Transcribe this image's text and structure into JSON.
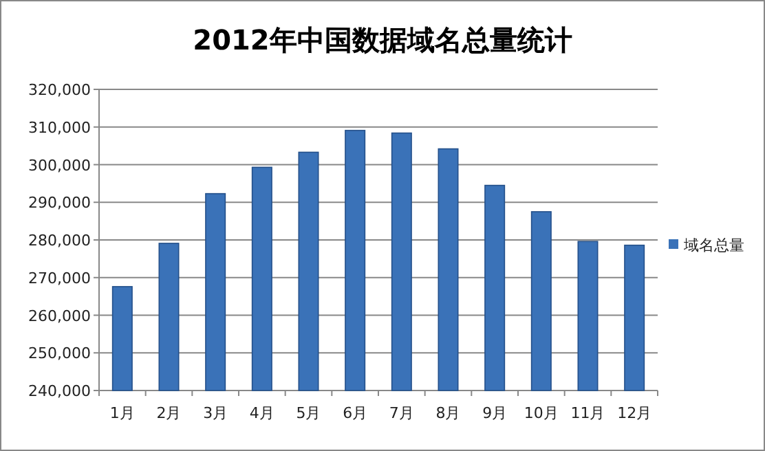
{
  "chart_data": {
    "type": "bar",
    "title": "2012年中国数据域名总量统计",
    "categories": [
      "1月",
      "2月",
      "3月",
      "4月",
      "5月",
      "6月",
      "7月",
      "8月",
      "9月",
      "10月",
      "11月",
      "12月"
    ],
    "series": [
      {
        "name": "域名总量",
        "color": "#3a72b8",
        "values": [
          267600,
          279100,
          292300,
          299300,
          303300,
          309100,
          308400,
          304200,
          294500,
          287500,
          279600,
          278600
        ]
      }
    ],
    "ylim": [
      240000,
      320000
    ],
    "yticks": [
      {
        "value": 240000,
        "label": "240,000"
      },
      {
        "value": 250000,
        "label": "250,000"
      },
      {
        "value": 260000,
        "label": "260,000"
      },
      {
        "value": 270000,
        "label": "270,000"
      },
      {
        "value": 280000,
        "label": "280,000"
      },
      {
        "value": 290000,
        "label": "290,000"
      },
      {
        "value": 300000,
        "label": "300,000"
      },
      {
        "value": 310000,
        "label": "310,000"
      },
      {
        "value": 320000,
        "label": "320,000"
      }
    ],
    "grid": "y",
    "legend": "right"
  }
}
